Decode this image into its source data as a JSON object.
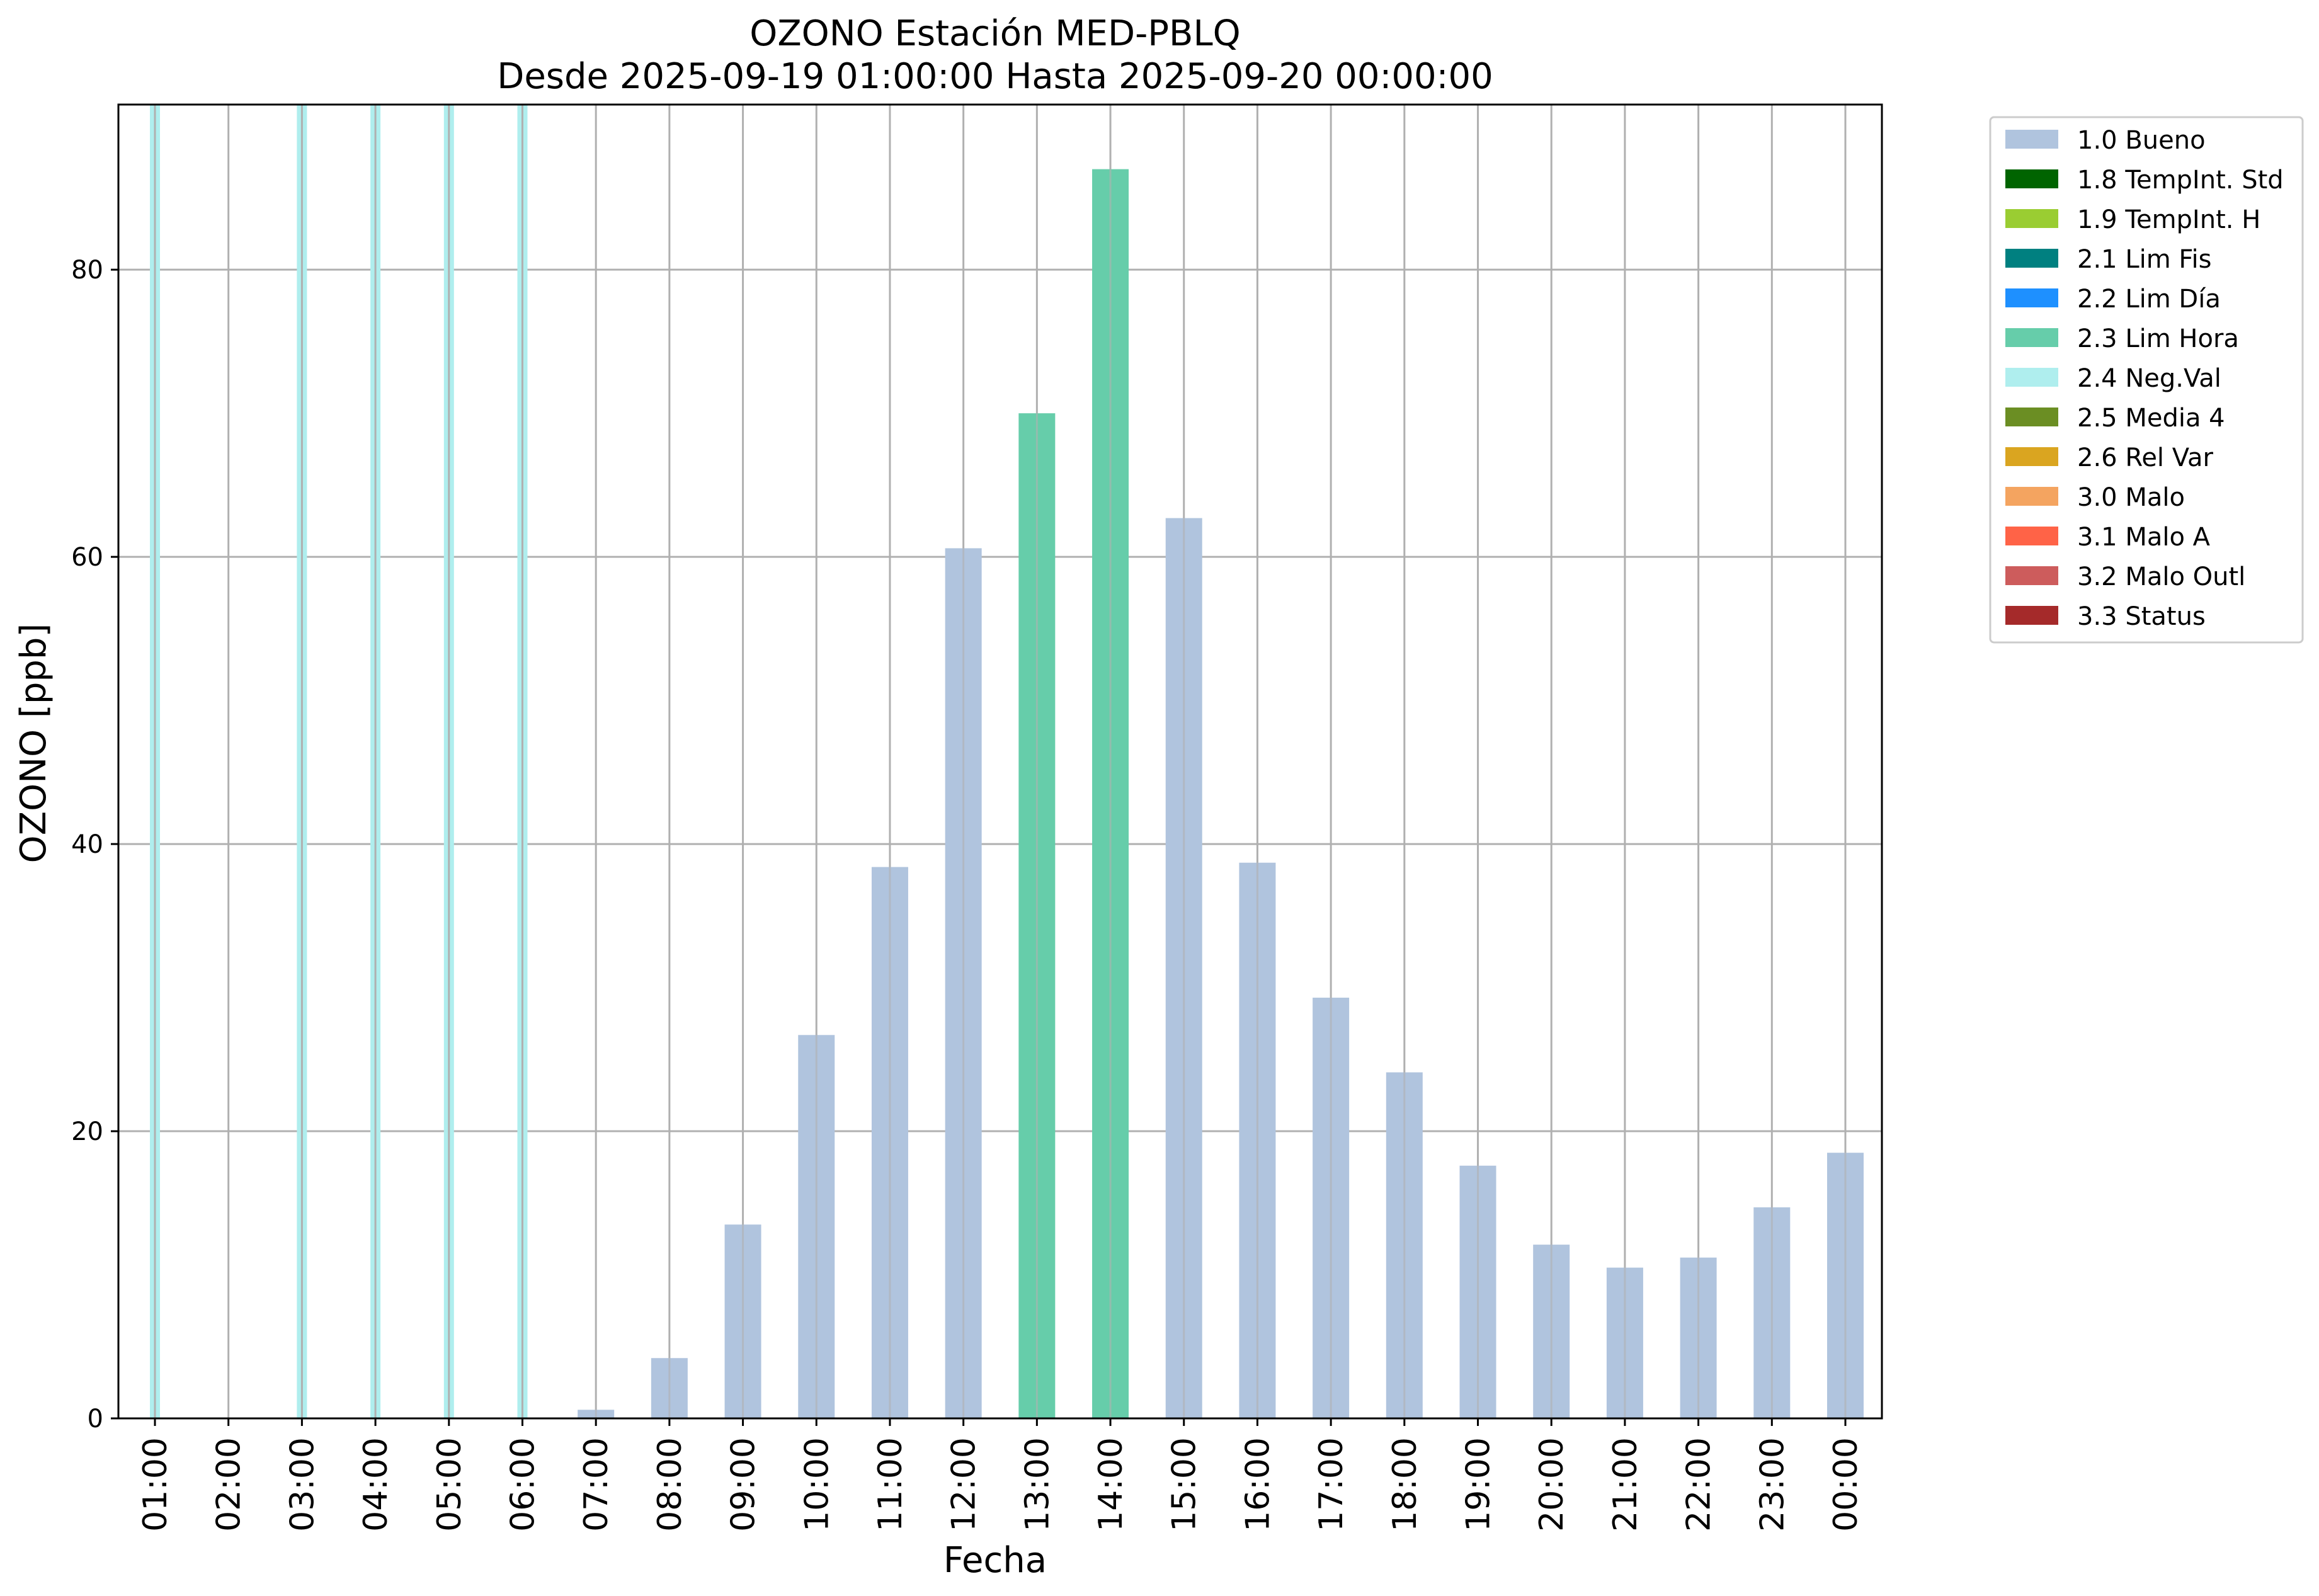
{
  "chart_data": {
    "type": "bar",
    "title": "OZONO Estación MED-PBLQ",
    "subtitle": "Desde 2025-09-19 01:00:00 Hasta 2025-09-20 00:00:00",
    "xlabel": "Fecha",
    "ylabel": "OZONO [ppb]",
    "ylim": [
      0,
      91.5
    ],
    "yticks": [
      0,
      20,
      40,
      60,
      80
    ],
    "grid": true,
    "legend_position": "outside-right",
    "categories": [
      "01:00",
      "02:00",
      "03:00",
      "04:00",
      "05:00",
      "06:00",
      "07:00",
      "08:00",
      "09:00",
      "10:00",
      "11:00",
      "12:00",
      "13:00",
      "14:00",
      "15:00",
      "16:00",
      "17:00",
      "18:00",
      "19:00",
      "20:00",
      "21:00",
      "22:00",
      "23:00",
      "00:00"
    ],
    "values": [
      null,
      null,
      null,
      null,
      null,
      null,
      0.6,
      4.2,
      13.5,
      26.7,
      38.4,
      60.6,
      70.0,
      87.0,
      62.7,
      38.7,
      29.3,
      24.1,
      17.6,
      12.1,
      10.5,
      11.2,
      14.7,
      18.5
    ],
    "flags": [
      "2.4 Neg.Val",
      null,
      "2.4 Neg.Val",
      "2.4 Neg.Val",
      "2.4 Neg.Val",
      "2.4 Neg.Val",
      "1.0 Bueno",
      "1.0 Bueno",
      "1.0 Bueno",
      "1.0 Bueno",
      "1.0 Bueno",
      "1.0 Bueno",
      "2.3 Lim Hora",
      "2.3 Lim Hora",
      "1.0 Bueno",
      "1.0 Bueno",
      "1.0 Bueno",
      "1.0 Bueno",
      "1.0 Bueno",
      "1.0 Bueno",
      "1.0 Bueno",
      "1.0 Bueno",
      "1.0 Bueno",
      "1.0 Bueno"
    ],
    "legend": [
      {
        "label": "1.0 Bueno",
        "color": "#b0c4de"
      },
      {
        "label": "1.8 TempInt. Std",
        "color": "#006400"
      },
      {
        "label": "1.9 TempInt. H",
        "color": "#9acd32"
      },
      {
        "label": "2.1 Lim Fis",
        "color": "#008080"
      },
      {
        "label": "2.2 Lim Día",
        "color": "#1e90ff"
      },
      {
        "label": "2.3 Lim Hora",
        "color": "#66cdaa"
      },
      {
        "label": "2.4 Neg.Val",
        "color": "#afeeee"
      },
      {
        "label": "2.5 Media 4",
        "color": "#6b8e23"
      },
      {
        "label": "2.6 Rel Var",
        "color": "#daa520"
      },
      {
        "label": "3.0 Malo",
        "color": "#f4a460"
      },
      {
        "label": "3.1 Malo A",
        "color": "#ff6347"
      },
      {
        "label": "3.2 Malo Outl",
        "color": "#cd5c5c"
      },
      {
        "label": "3.3 Status",
        "color": "#a52a2a"
      }
    ]
  }
}
